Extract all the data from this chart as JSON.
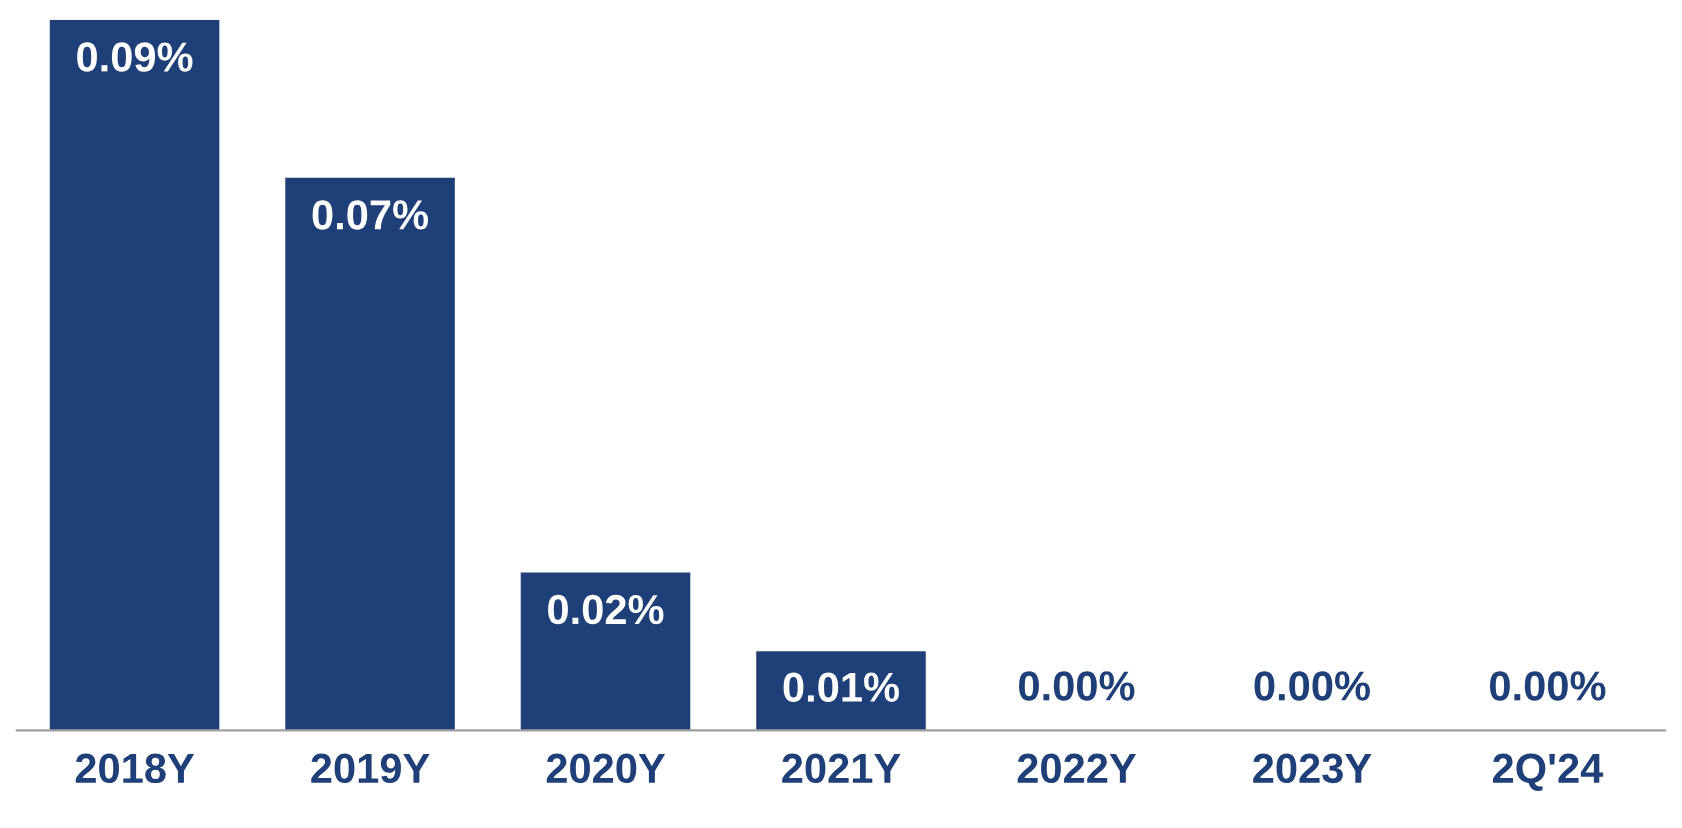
{
  "chart_data": {
    "type": "bar",
    "categories": [
      "2018Y",
      "2019Y",
      "2020Y",
      "2021Y",
      "2022Y",
      "2023Y",
      "2Q'24"
    ],
    "values": [
      0.09,
      0.07,
      0.02,
      0.01,
      0.0,
      0.0,
      0.0
    ],
    "value_labels": [
      "0.09%",
      "0.07%",
      "0.02%",
      "0.01%",
      "0.00%",
      "0.00%",
      "0.00%"
    ],
    "color": "#1f3f78",
    "ylim": [
      0,
      0.09
    ],
    "tick_labels": "x",
    "grid": false,
    "legend": false
  }
}
